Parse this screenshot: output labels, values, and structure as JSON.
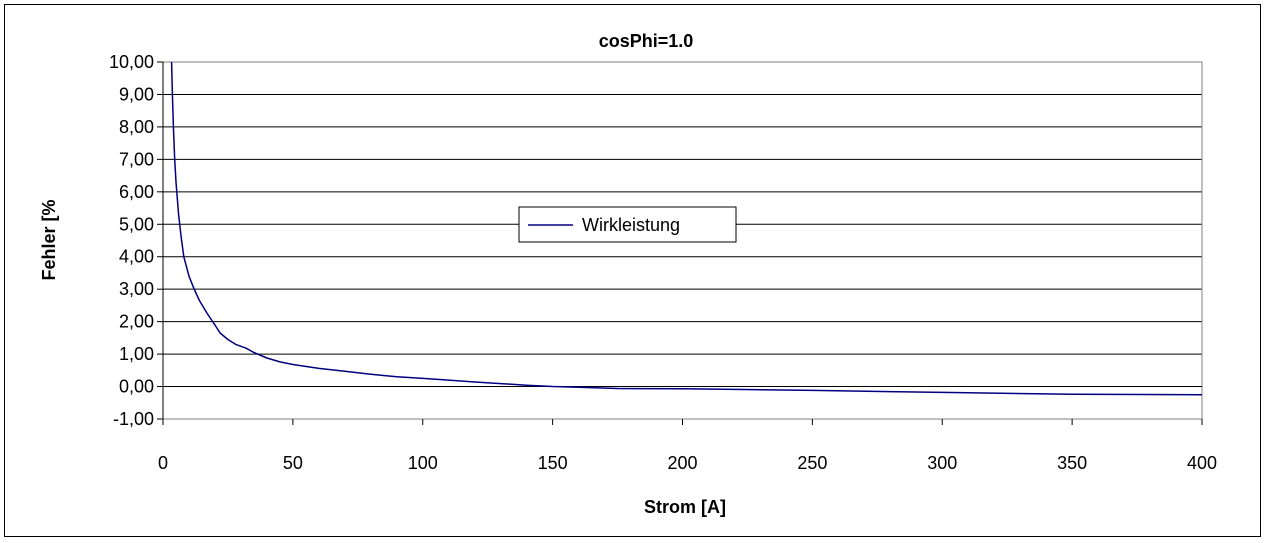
{
  "chart_data": {
    "type": "line",
    "title": "cosPhi=1.0",
    "xlabel": "Strom [A]",
    "ylabel": "Fehler [%",
    "xlim": [
      0,
      400
    ],
    "ylim": [
      -1,
      10
    ],
    "x_ticks": [
      0,
      50,
      100,
      150,
      200,
      250,
      300,
      350,
      400
    ],
    "x_tick_labels": [
      "0",
      "50",
      "100",
      "150",
      "200",
      "250",
      "300",
      "350",
      "400"
    ],
    "y_ticks": [
      -1,
      0,
      1,
      2,
      3,
      4,
      5,
      6,
      7,
      8,
      9,
      10
    ],
    "y_tick_labels": [
      "-1,00",
      "0,00",
      "1,00",
      "2,00",
      "3,00",
      "4,00",
      "5,00",
      "6,00",
      "7,00",
      "8,00",
      "9,00",
      "10,00"
    ],
    "grid": "horizontal",
    "plot_background": "#ffffff",
    "legend": {
      "position": "center",
      "entries": [
        "Wirkleistung"
      ]
    },
    "series": [
      {
        "name": "Wirkleistung",
        "color": "#000080",
        "x": [
          3.3,
          3.6,
          4,
          4.5,
          5,
          6,
          7,
          8,
          10,
          12,
          14,
          17,
          20,
          22,
          25,
          28,
          32,
          35,
          40,
          45,
          50,
          60,
          70,
          80,
          90,
          100,
          110,
          120,
          130,
          140,
          150,
          160,
          175,
          200,
          250,
          300,
          350,
          400
        ],
        "y": [
          10,
          9.0,
          8.0,
          7.0,
          6.3,
          5.3,
          4.6,
          4.0,
          3.4,
          3.0,
          2.65,
          2.25,
          1.9,
          1.65,
          1.45,
          1.3,
          1.18,
          1.05,
          0.88,
          0.76,
          0.68,
          0.56,
          0.47,
          0.38,
          0.3,
          0.25,
          0.2,
          0.14,
          0.09,
          0.04,
          0.0,
          -0.02,
          -0.06,
          -0.07,
          -0.12,
          -0.18,
          -0.24,
          -0.25
        ]
      }
    ]
  }
}
